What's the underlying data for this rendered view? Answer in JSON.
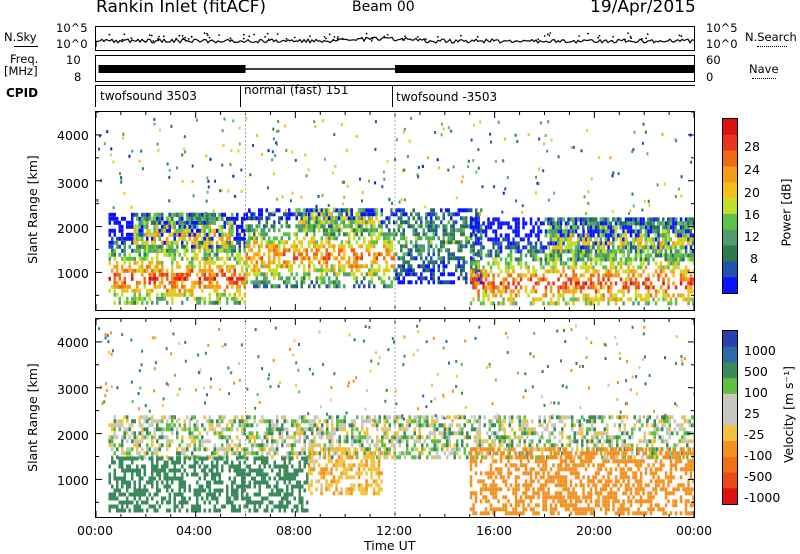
{
  "header": {
    "station": "Rankin Inlet (fitACF)",
    "beam": "Beam 00",
    "date": "19/Apr/2015"
  },
  "top_strip": {
    "nsky_label": "N.Sky",
    "nsky_ticks": [
      "10^5",
      "10^0"
    ],
    "nsearch_label": "N.Search",
    "nsearch_ticks": [
      "10^5",
      "10^0"
    ],
    "freq_label_1": "Freq.",
    "freq_label_2": "[MHz]",
    "freq_ticks": [
      "10",
      "8"
    ],
    "nave_label": "Nave",
    "nave_ticks": [
      "60",
      "0"
    ],
    "cpid_label": "CPID",
    "cpid_segments": [
      {
        "label": "twofsound 3503",
        "start_hour": 0.0,
        "end_hour": 6.0
      },
      {
        "label": "normal (fast) 151",
        "start_hour": 6.0,
        "end_hour": 12.0
      },
      {
        "label": "twofsound -3503",
        "start_hour": 12.0,
        "end_hour": 24.0
      }
    ]
  },
  "colors": {
    "power_scale": [
      "#0a14ff",
      "#2050b0",
      "#2e7a4d",
      "#4f9c6c",
      "#5cc24a",
      "#c2df2a",
      "#f4c018",
      "#f59b1b",
      "#f06a14",
      "#e8351b",
      "#e01010"
    ],
    "velocity_scale": [
      "#2a3fae",
      "#2f6aa8",
      "#3a8a5c",
      "#5fbf3f",
      "#c8c8c0",
      "#c8c8c0",
      "#f2c23a",
      "#f29020",
      "#f07015",
      "#ec4a14",
      "#e01010"
    ]
  },
  "chart_data": [
    {
      "type": "heatmap",
      "title": "",
      "xlabel": "",
      "ylabel": "Slant Range [km]",
      "x_ticks": [
        "00:00",
        "04:00",
        "08:00",
        "12:00",
        "16:00",
        "20:00",
        "00:00"
      ],
      "y_ticks": [
        "1000",
        "2000",
        "3000",
        "4000"
      ],
      "xlim_hours": [
        0,
        24
      ],
      "ylim_km": [
        180,
        4500
      ],
      "colorbar_label": "Power [dB]",
      "colorbar_ticks": [
        "28",
        "24",
        "20",
        "16",
        "12",
        "8",
        "4"
      ],
      "colorbar_range": [
        0,
        30
      ],
      "echo_regions": [
        {
          "start_h": 0.5,
          "end_h": 6.0,
          "lo_km": 300,
          "hi_km": 2300,
          "peak": 26,
          "center_km": 900
        },
        {
          "start_h": 1.5,
          "end_h": 5.5,
          "lo_km": 1500,
          "hi_km": 2300,
          "peak": 18,
          "center_km": 1800
        },
        {
          "start_h": 6.0,
          "end_h": 12.0,
          "lo_km": 700,
          "hi_km": 2400,
          "peak": 24,
          "center_km": 1400
        },
        {
          "start_h": 8.0,
          "end_h": 11.5,
          "lo_km": 1900,
          "hi_km": 2400,
          "peak": 15,
          "center_km": 2200
        },
        {
          "start_h": 12.0,
          "end_h": 15.5,
          "lo_km": 800,
          "hi_km": 2400,
          "peak": 10,
          "center_km": 1800
        },
        {
          "start_h": 15.0,
          "end_h": 24.0,
          "lo_km": 300,
          "hi_km": 2200,
          "peak": 26,
          "center_km": 800
        },
        {
          "start_h": 18.0,
          "end_h": 24.0,
          "lo_km": 1300,
          "hi_km": 2200,
          "peak": 16,
          "center_km": 1700
        }
      ]
    },
    {
      "type": "heatmap",
      "title": "",
      "xlabel": "Time UT",
      "ylabel": "Slant Range [km]",
      "x_ticks": [
        "00:00",
        "04:00",
        "08:00",
        "12:00",
        "16:00",
        "20:00",
        "00:00"
      ],
      "y_ticks": [
        "1000",
        "2000",
        "3000",
        "4000"
      ],
      "xlim_hours": [
        0,
        24
      ],
      "ylim_km": [
        180,
        4500
      ],
      "colorbar_label": "Velocity [m s⁻¹]",
      "colorbar_ticks": [
        "1000",
        "500",
        "100",
        "25",
        "-25",
        "-100",
        "-500",
        "-1000"
      ],
      "colorbar_range": [
        -1000,
        1000
      ],
      "echo_regions": [
        {
          "start_h": 0.5,
          "end_h": 24.0,
          "lo_km": 1500,
          "hi_km": 2400,
          "vel": 0
        },
        {
          "start_h": 0.5,
          "end_h": 8.5,
          "lo_km": 300,
          "hi_km": 1500,
          "vel": 200
        },
        {
          "start_h": 8.5,
          "end_h": 11.5,
          "lo_km": 700,
          "hi_km": 1700,
          "vel": -150
        },
        {
          "start_h": 15.0,
          "end_h": 24.0,
          "lo_km": 300,
          "hi_km": 1700,
          "vel": -300
        }
      ]
    }
  ]
}
